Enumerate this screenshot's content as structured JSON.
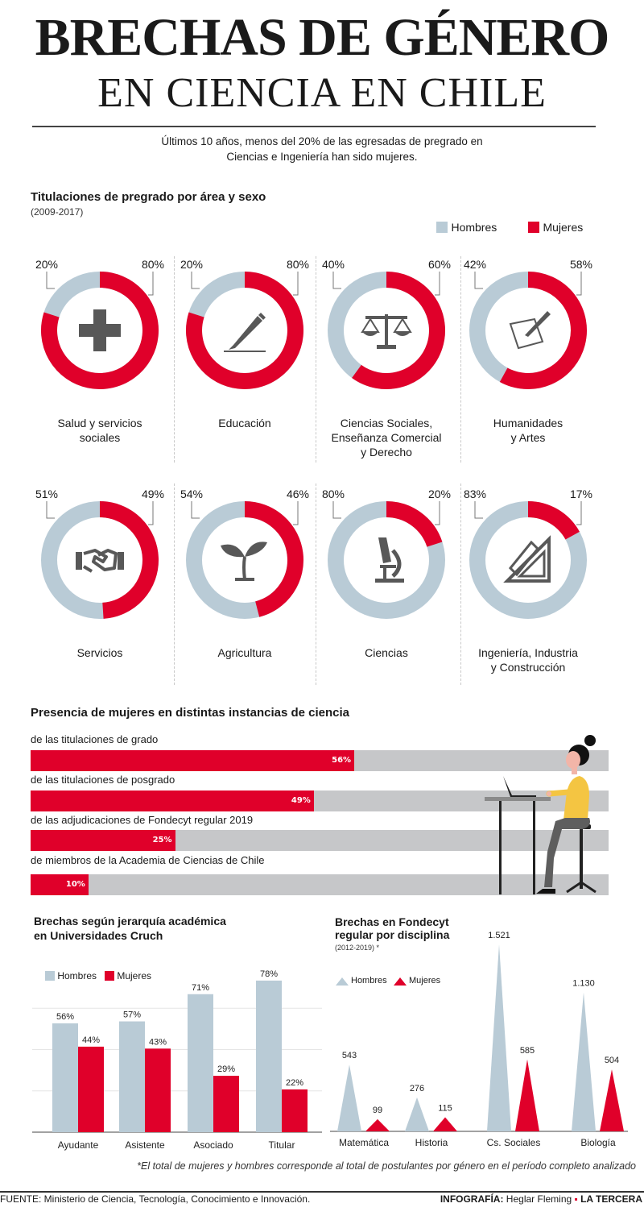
{
  "header": {
    "title_line1": "BRECHAS DE GÉNERO",
    "title_line2": "EN CIENCIA EN CHILE",
    "subtitle_line1": "Últimos 10 años, menos del 20% de las egresadas de pregrado en",
    "subtitle_line2": "Ciencias e Ingeniería han sido mujeres."
  },
  "colors": {
    "hombres": "#b9cbd6",
    "mujeres": "#e0002a",
    "bar_bg": "#c6c7c9",
    "icon": "#585858"
  },
  "section1": {
    "title": "Titulaciones de pregrado por área y sexo",
    "subtitle": "(2009-2017)",
    "legend_hombres": "Hombres",
    "legend_mujeres": "Mujeres"
  },
  "chart_data": [
    {
      "type": "pie",
      "series": [
        "Hombres",
        "Mujeres"
      ],
      "items": [
        {
          "label_lines": [
            "Salud y servicios",
            "sociales"
          ],
          "hombres": 20,
          "mujeres": 80,
          "hombres_label": "20%",
          "mujeres_label": "80%",
          "icon": "medical-cross-icon"
        },
        {
          "label_lines": [
            "Educación"
          ],
          "hombres": 20,
          "mujeres": 80,
          "hombres_label": "20%",
          "mujeres_label": "80%",
          "icon": "pencil-icon"
        },
        {
          "label_lines": [
            "Ciencias Sociales,",
            "Enseñanza Comercial",
            "y Derecho"
          ],
          "hombres": 40,
          "mujeres": 60,
          "hombres_label": "40%",
          "mujeres_label": "60%",
          "icon": "scales-icon"
        },
        {
          "label_lines": [
            "Humanidades",
            "y Artes"
          ],
          "hombres": 42,
          "mujeres": 58,
          "hombres_label": "42%",
          "mujeres_label": "58%",
          "icon": "quill-icon"
        },
        {
          "label_lines": [
            "Servicios"
          ],
          "hombres": 51,
          "mujeres": 49,
          "hombres_label": "51%",
          "mujeres_label": "49%",
          "icon": "handshake-icon"
        },
        {
          "label_lines": [
            "Agricultura"
          ],
          "hombres": 54,
          "mujeres": 46,
          "hombres_label": "54%",
          "mujeres_label": "46%",
          "icon": "sprout-icon"
        },
        {
          "label_lines": [
            "Ciencias"
          ],
          "hombres": 80,
          "mujeres": 20,
          "hombres_label": "80%",
          "mujeres_label": "20%",
          "icon": "microscope-icon"
        },
        {
          "label_lines": [
            "Ingeniería, Industria",
            "y Construcción"
          ],
          "hombres": 83,
          "mujeres": 17,
          "hombres_label": "83%",
          "mujeres_label": "17%",
          "icon": "set-square-icon"
        }
      ]
    },
    {
      "type": "bar",
      "orientation": "horizontal",
      "title": "Presencia de mujeres en distintas instancias de ciencia",
      "categories": [
        "de las titulaciones de grado",
        "de las titulaciones de posgrado",
        "de las adjudicaciones de Fondecyt regular 2019",
        "de miembros de la Academia de Ciencias de Chile"
      ],
      "values": [
        56,
        49,
        25,
        10
      ],
      "value_labels": [
        "56%",
        "49%",
        "25%",
        "10%"
      ],
      "xlim": [
        0,
        100
      ]
    },
    {
      "type": "bar",
      "title_lines": [
        "Brechas según jerarquía académica",
        "en Universidades Cruch"
      ],
      "categories": [
        "Ayudante",
        "Asistente",
        "Asociado",
        "Titular"
      ],
      "series": [
        {
          "name": "Hombres",
          "values": [
            56,
            57,
            71,
            78
          ],
          "labels": [
            "56%",
            "57%",
            "71%",
            "78%"
          ]
        },
        {
          "name": "Mujeres",
          "values": [
            44,
            43,
            29,
            22
          ],
          "labels": [
            "44%",
            "43%",
            "29%",
            "22%"
          ]
        }
      ],
      "ylim": [
        0,
        85
      ]
    },
    {
      "type": "area",
      "title_lines": [
        "Brechas en Fondecyt",
        "regular por disciplina"
      ],
      "subtitle": "(2012-2019) *",
      "categories": [
        "Matemática",
        "Historia",
        "Cs. Sociales",
        "Biología"
      ],
      "series": [
        {
          "name": "Hombres",
          "values": [
            543,
            276,
            1521,
            1130
          ],
          "labels": [
            "543",
            "276",
            "1.521",
            "1.130"
          ]
        },
        {
          "name": "Mujeres",
          "values": [
            99,
            115,
            585,
            504
          ],
          "labels": [
            "99",
            "115",
            "585",
            "504"
          ]
        }
      ],
      "ylim": [
        0,
        1600
      ]
    }
  ],
  "footer": {
    "note": "*El total de mujeres y hombres corresponde al total de postulantes por género en el período completo analizado",
    "source": "FUENTE: Ministerio de Ciencia, Tecnología, Conocimiento e Innovación.",
    "credit_prefix": "INFOGRAFÍA:",
    "credit_name": " Heglar Fleming ",
    "credit_bullet": "▪",
    "credit_brand": " LA TERCERA"
  }
}
